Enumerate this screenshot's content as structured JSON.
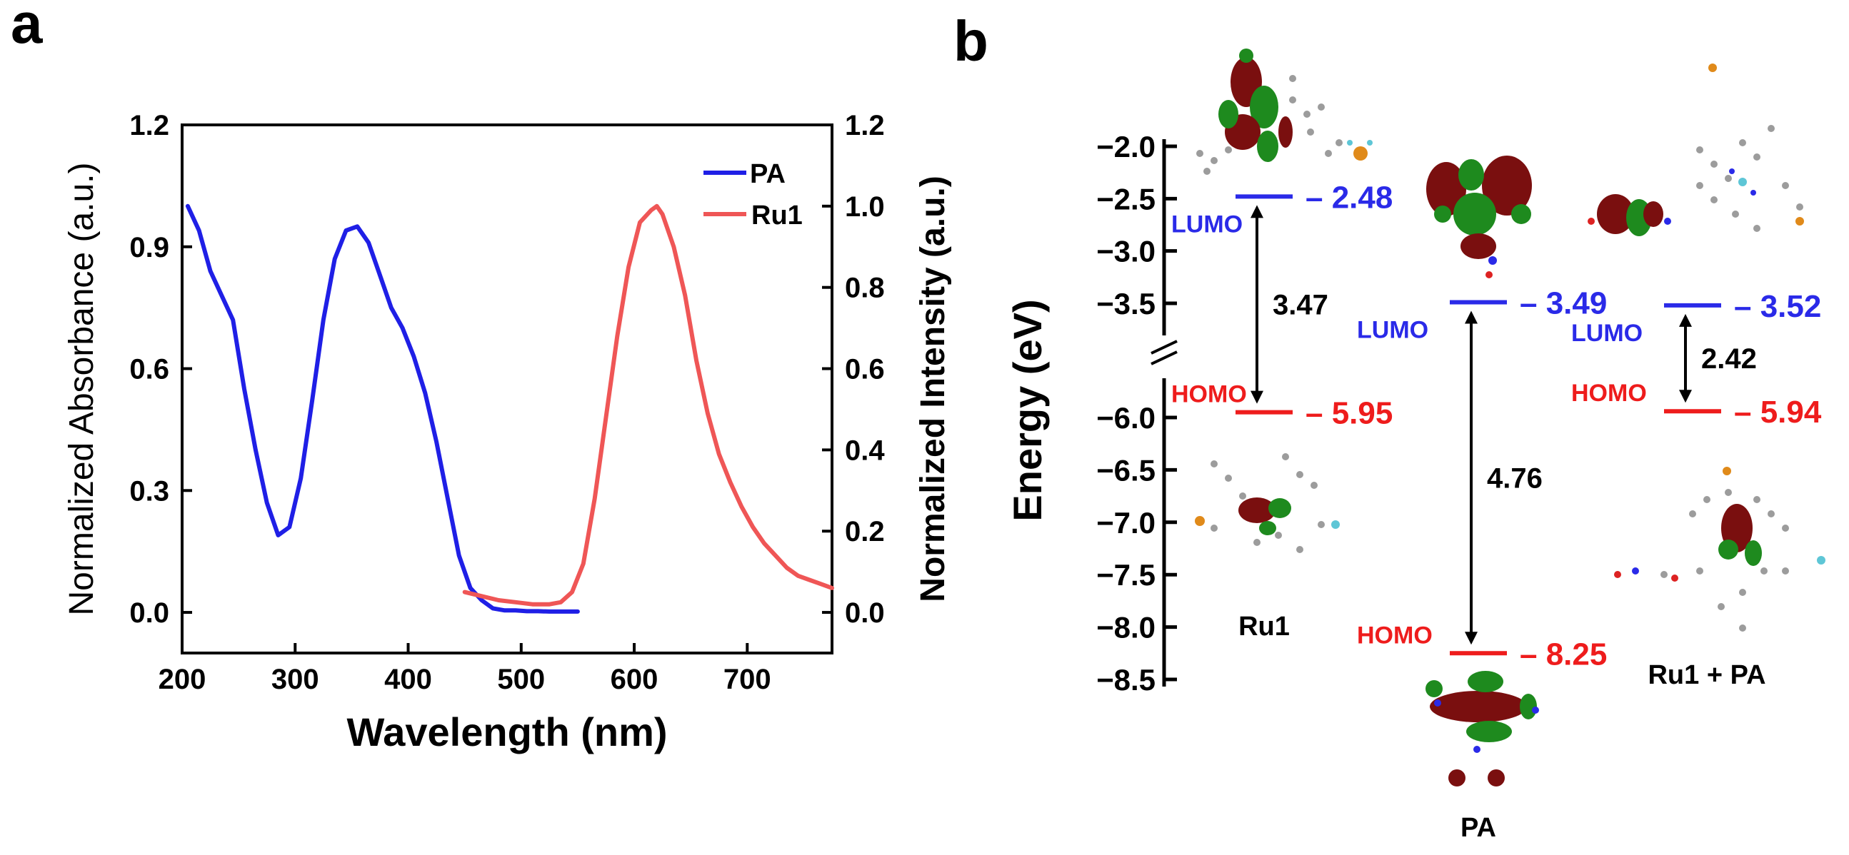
{
  "chart_data": [
    {
      "panel": "a",
      "type": "line",
      "xlabel": "Wavelength (nm)",
      "ylabel_left": "Normalized Absorbance (a.u.)",
      "ylabel_right": "Normalized Intensity (a.u.)",
      "xlim": [
        200,
        775
      ],
      "ylim_left": [
        -0.1,
        1.2
      ],
      "ylim_right": [
        -0.1,
        1.2
      ],
      "x_ticks": [
        "200",
        "300",
        "400",
        "500",
        "600",
        "700"
      ],
      "y_ticks_left": [
        "0.0",
        "0.3",
        "0.6",
        "0.9",
        "1.2"
      ],
      "y_ticks_right": [
        "0.0",
        "0.2",
        "0.4",
        "0.6",
        "0.8",
        "1.0",
        "1.2"
      ],
      "series": [
        {
          "name": "PA",
          "axis": "left",
          "color": "#1f1fe6",
          "x": [
            205,
            215,
            225,
            235,
            245,
            255,
            265,
            275,
            285,
            295,
            305,
            315,
            325,
            335,
            345,
            355,
            365,
            375,
            385,
            395,
            405,
            415,
            425,
            435,
            445,
            455,
            465,
            475,
            485,
            495,
            505,
            515,
            525,
            535,
            545,
            550
          ],
          "y": [
            1.0,
            0.94,
            0.84,
            0.78,
            0.72,
            0.55,
            0.4,
            0.27,
            0.19,
            0.21,
            0.33,
            0.52,
            0.72,
            0.87,
            0.94,
            0.95,
            0.91,
            0.83,
            0.75,
            0.7,
            0.63,
            0.54,
            0.42,
            0.28,
            0.14,
            0.06,
            0.03,
            0.01,
            0.005,
            0.005,
            0.003,
            0.003,
            0.002,
            0.002,
            0.002,
            0.002
          ]
        },
        {
          "name": "Ru1",
          "axis": "right",
          "color": "#ef5656",
          "x": [
            450,
            465,
            480,
            495,
            510,
            525,
            535,
            545,
            555,
            565,
            575,
            585,
            595,
            605,
            615,
            620,
            625,
            635,
            645,
            655,
            665,
            675,
            685,
            695,
            705,
            715,
            725,
            735,
            745,
            755,
            765,
            775
          ],
          "y": [
            0.05,
            0.04,
            0.03,
            0.025,
            0.02,
            0.02,
            0.025,
            0.05,
            0.12,
            0.28,
            0.48,
            0.68,
            0.85,
            0.96,
            0.99,
            1.0,
            0.98,
            0.9,
            0.78,
            0.62,
            0.49,
            0.39,
            0.32,
            0.26,
            0.21,
            0.17,
            0.14,
            0.11,
            0.09,
            0.08,
            0.07,
            0.06
          ]
        }
      ]
    },
    {
      "panel": "b",
      "type": "energy-level-diagram",
      "ylabel": "Energy (eV)",
      "y_ticks_upper": [
        "-2.0",
        "-2.5",
        "-3.0",
        "-3.5"
      ],
      "y_ticks_lower": [
        "-6.0",
        "-6.5",
        "-7.0",
        "-7.5",
        "-8.0",
        "-8.5"
      ],
      "upper_range": [
        -2.0,
        -3.5
      ],
      "lower_range": [
        -6.0,
        -8.5
      ],
      "systems": [
        {
          "name": "Ru1",
          "lumo": -2.48,
          "homo": -5.95,
          "lumo_text": "– 2.48",
          "homo_text": "– 5.95",
          "gap": "3.47"
        },
        {
          "name": "PA",
          "lumo": -3.49,
          "homo": -8.25,
          "lumo_text": "– 3.49",
          "homo_text": "– 8.25",
          "gap": "4.76"
        },
        {
          "name": "Ru1 + PA",
          "lumo": -3.52,
          "homo": -5.94,
          "lumo_text": "– 3.52",
          "homo_text": "– 5.94",
          "gap": "2.42"
        }
      ],
      "lumo_label": "LUMO",
      "homo_label": "HOMO",
      "lumo_color": "#2a2ae8",
      "homo_color": "#ee1c1c"
    }
  ],
  "panel_labels": {
    "a": "a",
    "b": "b"
  },
  "legend": {
    "pa": "PA",
    "ru1": "Ru1"
  },
  "colors": {
    "orbital_red": "#7a0f0f",
    "orbital_green": "#1e8a1e",
    "atom_gray": "#9c9c9c"
  },
  "orbital_pictures": [
    "Ru1 LUMO",
    "Ru1 HOMO",
    "PA LUMO",
    "PA HOMO",
    "Ru1 + PA LUMO",
    "Ru1 + PA HOMO"
  ]
}
